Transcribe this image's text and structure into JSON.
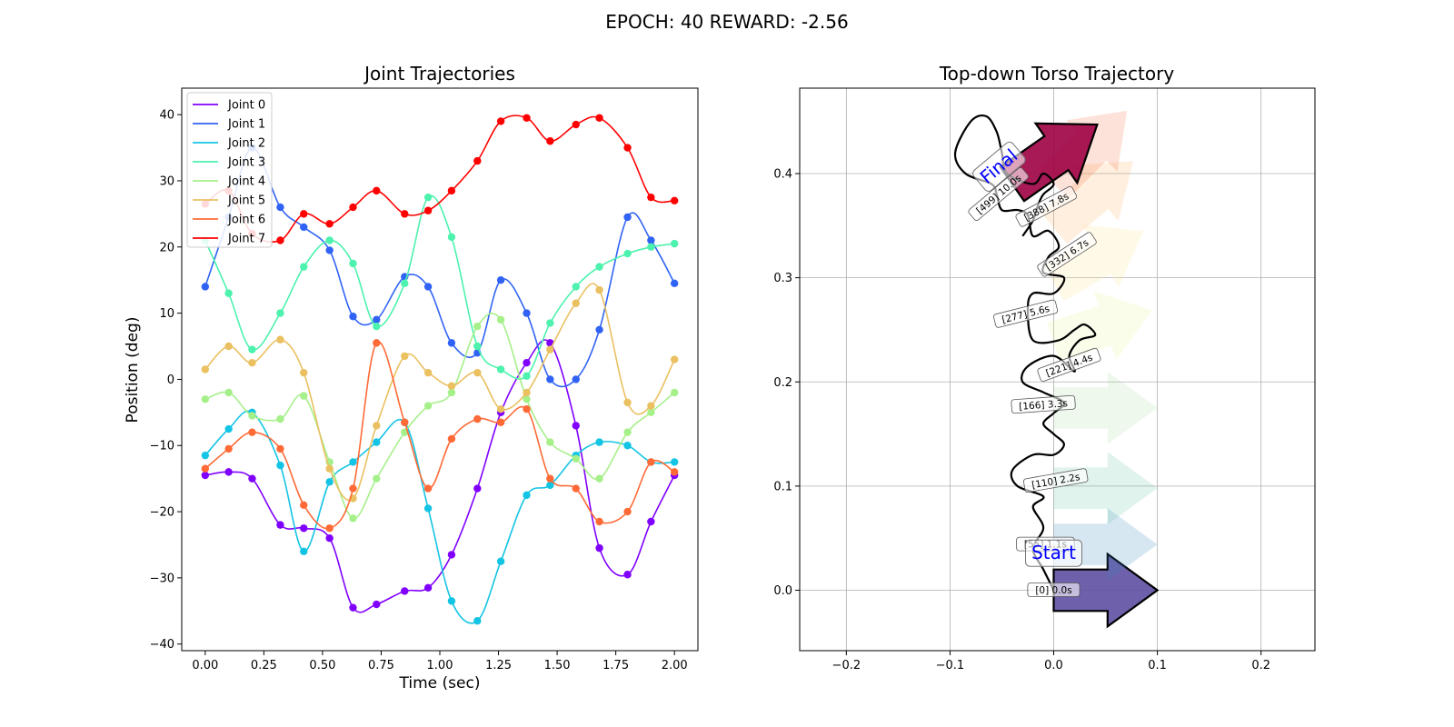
{
  "figure_title": "EPOCH:  40 REWARD:  -2.56",
  "chart_data": [
    {
      "type": "line",
      "title": "Joint Trajectories",
      "xlabel": "Time (sec)",
      "ylabel": "Position (deg)",
      "xlim": [
        -0.1,
        2.1
      ],
      "ylim": [
        -41,
        44
      ],
      "xticks": [
        0.0,
        0.25,
        0.5,
        0.75,
        1.0,
        1.25,
        1.5,
        1.75,
        2.0
      ],
      "xtick_labels": [
        "0.00",
        "0.25",
        "0.50",
        "0.75",
        "1.00",
        "1.25",
        "1.50",
        "1.75",
        "2.00"
      ],
      "yticks": [
        -40,
        -30,
        -20,
        -10,
        0,
        10,
        20,
        30,
        40
      ],
      "ytick_labels": [
        "−40",
        "−30",
        "−20",
        "−10",
        "0",
        "10",
        "20",
        "30",
        "40"
      ],
      "legend_position": "top-left",
      "x": [
        0.0,
        0.1,
        0.2,
        0.32,
        0.42,
        0.53,
        0.63,
        0.73,
        0.85,
        0.95,
        1.05,
        1.16,
        1.26,
        1.37,
        1.47,
        1.58,
        1.68,
        1.8,
        1.9,
        2.0
      ],
      "series": [
        {
          "name": "Joint 0",
          "color": "#8000ff",
          "values": [
            -14.5,
            -14,
            -15,
            -22,
            -22.5,
            -24,
            -34.5,
            -34,
            -32,
            -31.5,
            -26.5,
            -16.5,
            -5,
            2.5,
            5.5,
            -7,
            -25.5,
            -29.5,
            -21.5,
            -14.5
          ]
        },
        {
          "name": "Joint 1",
          "color": "#3063f5",
          "values": [
            14,
            24.5,
            35,
            26,
            23,
            19.5,
            9.5,
            9,
            15.5,
            14,
            5.5,
            4,
            15,
            10,
            0,
            0,
            7.5,
            24.5,
            21,
            14.5
          ]
        },
        {
          "name": "Joint 2",
          "color": "#14c4e4",
          "values": [
            -11.5,
            -7.5,
            -5,
            -13,
            -26,
            -15.5,
            -12.5,
            -9.5,
            -6.5,
            -19.5,
            -33.5,
            -36.5,
            -27.5,
            -17.5,
            -16,
            -11.5,
            -9.5,
            -10,
            -12.5,
            -12.5
          ]
        },
        {
          "name": "Joint 3",
          "color": "#4cf2ad",
          "values": [
            21,
            13,
            4.5,
            10,
            17,
            21,
            17.5,
            8,
            14.5,
            27.5,
            21.5,
            5,
            1.5,
            0.5,
            8.5,
            14,
            17,
            19,
            20,
            20.5
          ]
        },
        {
          "name": "Joint 4",
          "color": "#a6f08a",
          "values": [
            -3,
            -2,
            -5.5,
            -6,
            -2.5,
            -12.5,
            -21,
            -15,
            -8,
            -4,
            -2,
            8,
            9,
            -3,
            -9.5,
            -12,
            -15,
            -8,
            -5,
            -2
          ]
        },
        {
          "name": "Joint 5",
          "color": "#eac060",
          "values": [
            1.5,
            5,
            2.5,
            6,
            1,
            -13.5,
            -18,
            -7,
            3.5,
            1,
            -1,
            1,
            -4.5,
            -2,
            4.5,
            11.5,
            13.5,
            -3.5,
            -4,
            3
          ]
        },
        {
          "name": "Joint 6",
          "color": "#ff6a36",
          "values": [
            -13.5,
            -10.5,
            -8,
            -10.5,
            -19,
            -22.5,
            -16.5,
            5.5,
            -6.5,
            -16.5,
            -9,
            -6,
            -6.5,
            -4.5,
            -15,
            -16.5,
            -21.5,
            -20,
            -12.5,
            -14
          ]
        },
        {
          "name": "Joint 7",
          "color": "#ff0000",
          "values": [
            26.5,
            28.5,
            22,
            21,
            25,
            23.5,
            26,
            28.5,
            25,
            25.5,
            28.5,
            33,
            39,
            39.5,
            36,
            38.5,
            39.5,
            35,
            27.5,
            27
          ]
        }
      ]
    },
    {
      "type": "scatter",
      "title": "Top-down Torso Trajectory",
      "xlim": [
        -0.245,
        0.252
      ],
      "ylim": [
        -0.058,
        0.482
      ],
      "xticks": [
        -0.2,
        -0.1,
        0.0,
        0.1,
        0.2
      ],
      "xtick_labels": [
        "−0.2",
        "−0.1",
        "0.0",
        "0.1",
        "0.2"
      ],
      "yticks": [
        0.0,
        0.1,
        0.2,
        0.3,
        0.4
      ],
      "ytick_labels": [
        "0.0",
        "0.1",
        "0.2",
        "0.3",
        "0.4"
      ],
      "grid": true,
      "path_color": "#000000",
      "start_label": "Start",
      "final_label": "Final",
      "path": [
        [
          0.0,
          0.0
        ],
        [
          -0.01,
          0.02
        ],
        [
          -0.02,
          0.04
        ],
        [
          -0.01,
          0.06
        ],
        [
          -0.02,
          0.08
        ],
        [
          -0.01,
          0.09
        ],
        [
          -0.035,
          0.1
        ],
        [
          -0.04,
          0.115
        ],
        [
          -0.02,
          0.13
        ],
        [
          0.0,
          0.13
        ],
        [
          0.01,
          0.14
        ],
        [
          0.0,
          0.15
        ],
        [
          -0.01,
          0.16
        ],
        [
          0.0,
          0.17
        ],
        [
          0.01,
          0.18
        ],
        [
          -0.01,
          0.19
        ],
        [
          -0.03,
          0.2
        ],
        [
          -0.025,
          0.215
        ],
        [
          0.0,
          0.225
        ],
        [
          0.02,
          0.21
        ],
        [
          0.015,
          0.225
        ],
        [
          0.025,
          0.24
        ],
        [
          0.04,
          0.245
        ],
        [
          0.03,
          0.255
        ],
        [
          0.02,
          0.25
        ],
        [
          0.005,
          0.24
        ],
        [
          -0.02,
          0.24
        ],
        [
          -0.025,
          0.27
        ],
        [
          -0.02,
          0.285
        ],
        [
          0.0,
          0.285
        ],
        [
          0.01,
          0.3
        ],
        [
          -0.01,
          0.305
        ],
        [
          -0.005,
          0.32
        ],
        [
          0.005,
          0.33
        ],
        [
          -0.005,
          0.345
        ],
        [
          -0.02,
          0.34
        ],
        [
          -0.025,
          0.36
        ],
        [
          -0.035,
          0.365
        ],
        [
          -0.05,
          0.365
        ],
        [
          -0.055,
          0.38
        ],
        [
          -0.06,
          0.39
        ],
        [
          -0.085,
          0.4
        ],
        [
          -0.095,
          0.42
        ],
        [
          -0.08,
          0.45
        ],
        [
          -0.065,
          0.455
        ],
        [
          -0.055,
          0.44
        ],
        [
          -0.05,
          0.42
        ],
        [
          -0.045,
          0.4
        ],
        [
          -0.02,
          0.39
        ],
        [
          -0.01,
          0.4
        ],
        [
          0.0,
          0.39
        ],
        [
          -0.01,
          0.38
        ],
        [
          -0.015,
          0.37
        ],
        [
          -0.02,
          0.355
        ],
        [
          -0.03,
          0.34
        ]
      ],
      "orientation_markers": [
        {
          "x": 0.0,
          "y": 0.0,
          "dir_deg": 0,
          "color": "#5e4fa2",
          "alpha": 0.9
        },
        {
          "x": 0.0,
          "y": 0.044,
          "dir_deg": 0,
          "color": "#3288bd",
          "alpha": 0.2
        },
        {
          "x": 0.0,
          "y": 0.098,
          "dir_deg": 0,
          "color": "#66c2a5",
          "alpha": 0.2
        },
        {
          "x": 0.0,
          "y": 0.175,
          "dir_deg": 0,
          "color": "#abdda4",
          "alpha": 0.2
        },
        {
          "x": 0.0,
          "y": 0.238,
          "dir_deg": 18,
          "color": "#e6f598",
          "alpha": 0.2
        },
        {
          "x": 0.0,
          "y": 0.295,
          "dir_deg": 30,
          "color": "#fee08b",
          "alpha": 0.2
        },
        {
          "x": 0.0,
          "y": 0.348,
          "dir_deg": 40,
          "color": "#fdae61",
          "alpha": 0.2
        },
        {
          "x": 0.0,
          "y": 0.39,
          "dir_deg": 45,
          "color": "#f46d43",
          "alpha": 0.2
        },
        {
          "x": -0.04,
          "y": 0.39,
          "dir_deg": 35,
          "color": "#9e0142",
          "alpha": 0.9
        }
      ],
      "waypoint_labels": [
        {
          "text": "[0] 0.0s",
          "x": 0.0,
          "y": 0.0,
          "rot": 0
        },
        {
          "text": "[55] 1.1s",
          "x": -0.008,
          "y": 0.044,
          "rot": 0
        },
        {
          "text": "[110] 2.2s",
          "x": 0.002,
          "y": 0.105,
          "rot": 10
        },
        {
          "text": "[166] 3.3s",
          "x": -0.01,
          "y": 0.178,
          "rot": 4
        },
        {
          "text": "[221] 4.4s",
          "x": 0.015,
          "y": 0.216,
          "rot": 20
        },
        {
          "text": "[277] 5.6s",
          "x": -0.027,
          "y": 0.265,
          "rot": 14
        },
        {
          "text": "[332] 6.7s",
          "x": 0.013,
          "y": 0.322,
          "rot": 33
        },
        {
          "text": "[388] 7.8s",
          "x": -0.007,
          "y": 0.368,
          "rot": 28
        },
        {
          "text": "[499] 10.0s",
          "x": -0.053,
          "y": 0.38,
          "rot": 40
        }
      ]
    }
  ]
}
